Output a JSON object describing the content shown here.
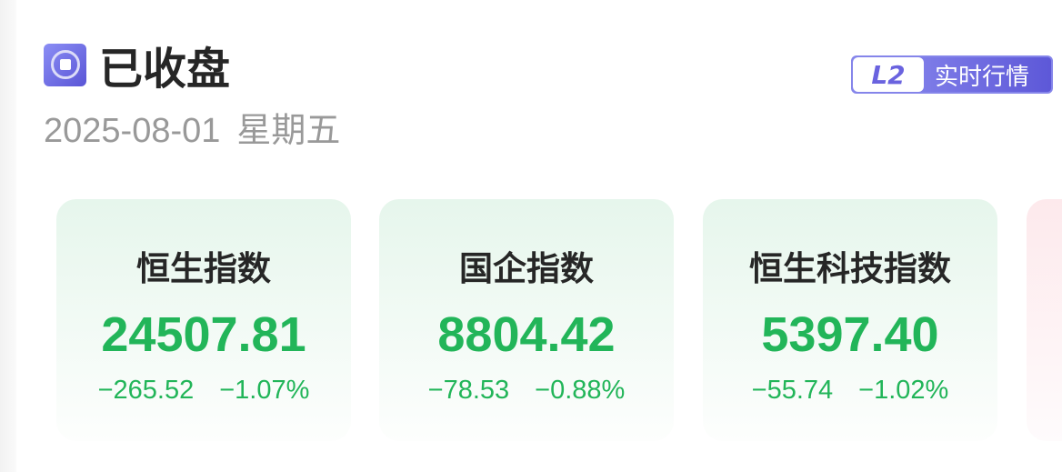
{
  "status": {
    "icon": "stop-circle-icon",
    "label": "已收盘",
    "date": "2025-08-01",
    "weekday": "星期五"
  },
  "badge": {
    "tag": "L2",
    "label": "实时行情"
  },
  "colors": {
    "down": "#22b559",
    "accent": "#5d58d8"
  },
  "indices": [
    {
      "name": "恒生指数",
      "value": "24507.81",
      "change": "−265.52",
      "percent": "−1.07%"
    },
    {
      "name": "国企指数",
      "value": "8804.42",
      "change": "−78.53",
      "percent": "−0.88%"
    },
    {
      "name": "恒生科技指数",
      "value": "5397.40",
      "change": "−55.74",
      "percent": "−1.02%"
    }
  ]
}
